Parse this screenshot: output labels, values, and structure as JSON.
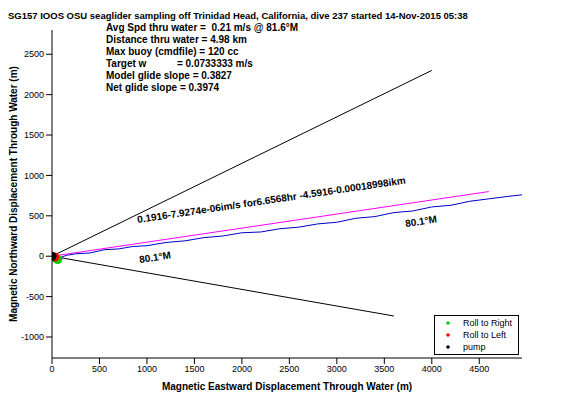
{
  "chart_data": {
    "type": "line",
    "title": "SG157 IOOS OSU seaglider sampling off Trinidad Head, California, dive 237 started 14-Nov-2015 05:38",
    "x_label": "Magnetic Eastward Displacement Through Water (m)",
    "y_label": "Magnetic Northward Displacement Through Water (m)",
    "xlim": [
      0,
      4950
    ],
    "xticks": [
      0,
      500,
      1000,
      1500,
      2000,
      2500,
      3000,
      3500,
      4000,
      4500
    ],
    "ylim": [
      -1260,
      2800
    ],
    "yticks": [
      -1000,
      -500,
      0,
      500,
      1000,
      1500,
      2000,
      2500
    ],
    "grid": false,
    "legend": "lower right",
    "annotations": [
      "Avg Spd thru water =  0.21 m/s @ 81.6°M",
      "Distance thru water = 4.98 km",
      "Max buoy (cmdfile) = 120 cc",
      "Target w           = 0.0733333 m/s",
      "Model glide slope = 0.3827",
      "Net glide slope = 0.3974",
      "0.1916-7.9274e-06im/s for6.6568hr -4.5916-0.00018998ikm",
      "80.1°M",
      "80.1°M"
    ],
    "series": [
      {
        "type": "line",
        "color": "#000000",
        "line_style": "solid",
        "x": [
          0,
          4000
        ],
        "values": [
          0,
          2300
        ]
      },
      {
        "type": "line",
        "color": "#000000",
        "line_style": "solid",
        "x": [
          0,
          3600
        ],
        "values": [
          0,
          -740
        ]
      },
      {
        "type": "line",
        "color": "#ff00ff",
        "line_style": "solid",
        "x": [
          0,
          4600
        ],
        "values": [
          0,
          800
        ]
      },
      {
        "type": "line",
        "color": "#0000cc",
        "line_style": "solid",
        "x": [
          0,
          40,
          80,
          150,
          250,
          400,
          550,
          700,
          850,
          1000,
          1200,
          1400,
          1600,
          1800,
          2000,
          2200,
          2400,
          2600,
          2800,
          3000,
          3200,
          3400,
          3600,
          3800,
          4000,
          4200,
          4400,
          4600,
          4800,
          4950
        ],
        "values": [
          0,
          -40,
          -20,
          10,
          30,
          40,
          80,
          90,
          120,
          130,
          170,
          190,
          230,
          250,
          290,
          300,
          340,
          360,
          400,
          420,
          470,
          490,
          540,
          560,
          610,
          630,
          680,
          710,
          740,
          760
        ]
      },
      {
        "type": "scatter",
        "name": "Roll to Right",
        "color": "#00cc00",
        "marker": "point",
        "x": [
          20,
          60
        ],
        "values": [
          -20,
          -40
        ]
      },
      {
        "type": "scatter",
        "name": "Roll to Left",
        "color": "#ff0000",
        "marker": "point",
        "x": [
          30
        ],
        "values": [
          -10
        ]
      },
      {
        "type": "scatter",
        "name": "pump",
        "color": "#000000",
        "marker": "point",
        "x": [
          0
        ],
        "values": [
          0
        ]
      }
    ]
  }
}
